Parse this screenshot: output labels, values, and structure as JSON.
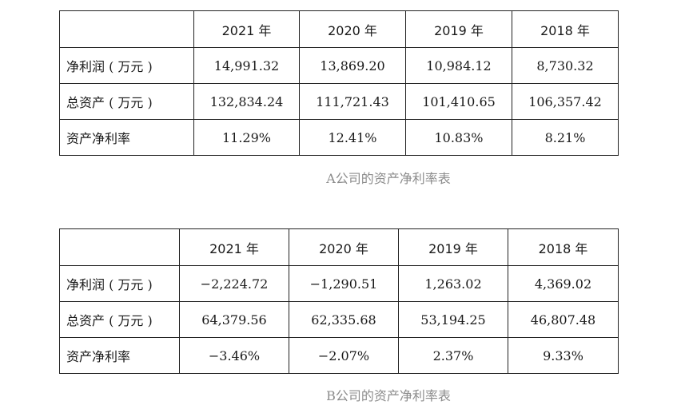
{
  "table_a": {
    "headers": [
      "",
      "2021 年",
      "2020 年",
      "2019 年",
      "2018 年"
    ],
    "rows": [
      {
        "label": "净利润 ( 万元 )",
        "values": [
          "14,991.32",
          "13,869.20",
          "10,984.12",
          "8,730.32"
        ]
      },
      {
        "label": "总资产 ( 万元 )",
        "values": [
          "132,834.24",
          "111,721.43",
          "101,410.65",
          "106,357.42"
        ]
      },
      {
        "label": "资产净利率",
        "values": [
          "11.29%",
          "12.41%",
          "10.83%",
          "8.21%"
        ]
      }
    ],
    "caption": "A公司的资产净利率表"
  },
  "table_b": {
    "headers": [
      "",
      "2021 年",
      "2020 年",
      "2019 年",
      "2018 年"
    ],
    "rows": [
      {
        "label": "净利润 ( 万元 )",
        "values": [
          "−2,224.72",
          "−1,290.51",
          "1,263.02",
          "4,369.02"
        ]
      },
      {
        "label": "总资产 ( 万元 )",
        "values": [
          "64,379.56",
          "62,335.68",
          "53,194.25",
          "46,807.48"
        ]
      },
      {
        "label": "资产净利率",
        "values": [
          "−3.46%",
          "−2.07%",
          "2.37%",
          "9.33%"
        ]
      }
    ],
    "caption": "B公司的资产净利率表"
  }
}
